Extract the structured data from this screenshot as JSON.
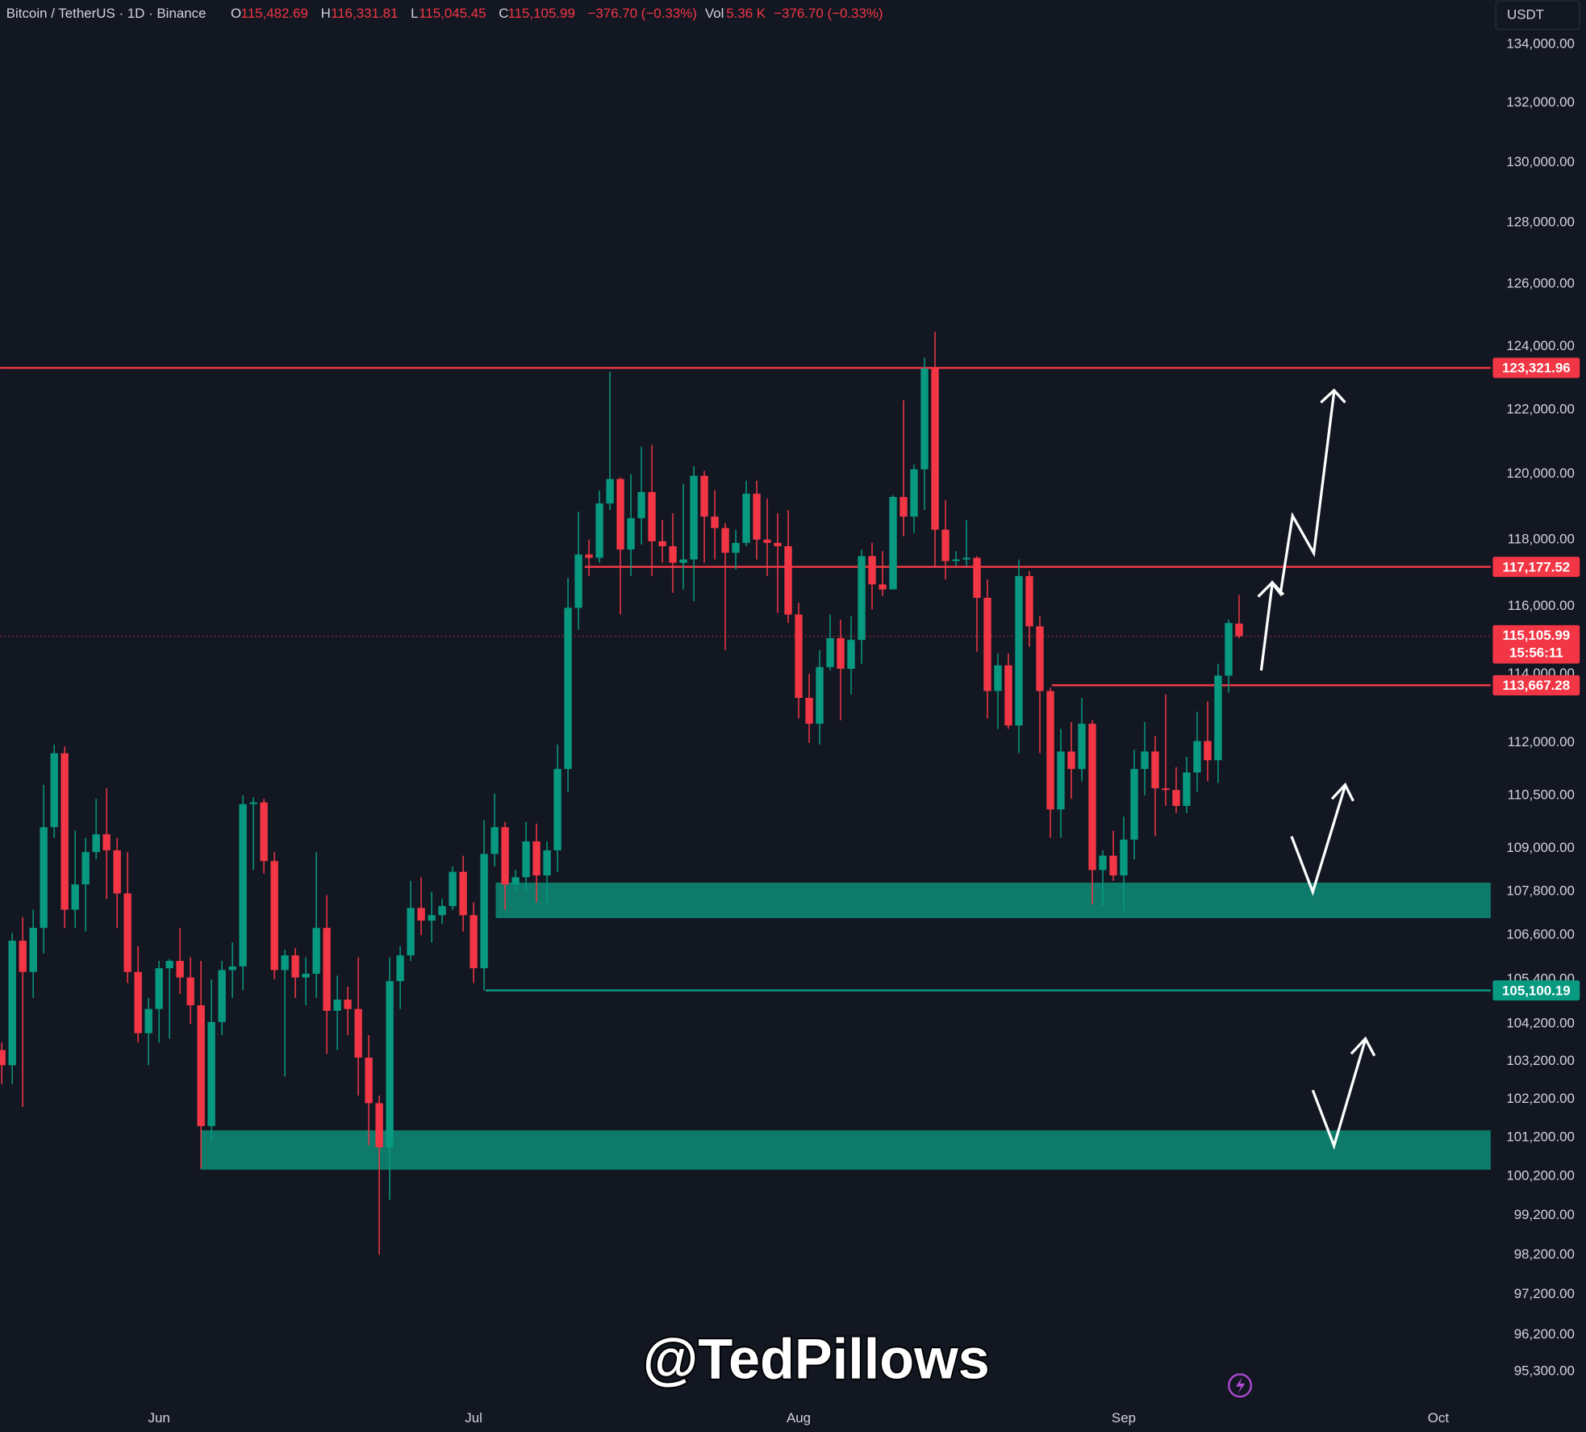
{
  "chart_data": {
    "type": "candlestick",
    "header": {
      "symbol": "Bitcoin / TetherUS · 1D · Binance",
      "fields": [
        {
          "key": "O",
          "value": "115,482.69"
        },
        {
          "key": "H",
          "value": "116,331.81"
        },
        {
          "key": "L",
          "value": "115,045.45"
        },
        {
          "key": "C",
          "value": "115,105.99"
        }
      ],
      "change": "−376.70 (−0.33%)",
      "volume": {
        "key": "Vol",
        "value": "5.36 K"
      },
      "volume_change": "−376.70 (−0.33%)",
      "currency": "USDT"
    },
    "watermark": "@TedPillows",
    "up_color": "#089981",
    "down_color": "#f23645",
    "log_scale": true,
    "grid": false,
    "open": [
      103500,
      103100,
      106450,
      105600,
      106800,
      109600,
      111700,
      107300,
      108000,
      108900,
      109400,
      108950,
      107750,
      105600,
      103950,
      104600,
      105700,
      105900,
      105450,
      104700,
      101500,
      104250,
      105650,
      105750,
      110250,
      110300,
      108650,
      105650,
      106050,
      105450,
      105550,
      106800,
      104550,
      104850,
      104600,
      103300,
      102100,
      100950,
      105350,
      106050,
      107350,
      107000,
      107150,
      107400,
      108350,
      107150,
      105700,
      108850,
      109600,
      108000,
      108200,
      109200,
      108250,
      108950,
      111250,
      115950,
      117550,
      117450,
      119100,
      119850,
      117700,
      118650,
      119450,
      117950,
      117800,
      117300,
      117400,
      119950,
      118700,
      118350,
      117600,
      117900,
      119400,
      118000,
      117900,
      117800,
      115750,
      113300,
      112550,
      114200,
      115050,
      114150,
      115000,
      117500,
      116650,
      116500,
      119300,
      118700,
      120150,
      123300,
      118300,
      117350,
      117400,
      117450,
      116250,
      113500,
      114250,
      112500,
      116900,
      115400,
      113500,
      110100,
      111750,
      111250,
      112550,
      108400,
      108800,
      108250,
      109250,
      111250,
      111750,
      110700,
      110650,
      110200,
      111150,
      112050,
      111500,
      113950,
      115482.69
    ],
    "high": [
      103700,
      106660,
      107100,
      107300,
      110800,
      111950,
      111900,
      109500,
      109300,
      110400,
      110700,
      109300,
      108900,
      106300,
      104900,
      105900,
      105950,
      106800,
      106000,
      105900,
      105400,
      105900,
      106400,
      110500,
      110450,
      110400,
      108900,
      106200,
      106250,
      106000,
      108900,
      107700,
      105500,
      105200,
      106000,
      103900,
      102300,
      106000,
      106300,
      108100,
      108200,
      107800,
      107600,
      108500,
      108800,
      107500,
      109800,
      110550,
      109750,
      108400,
      109750,
      109700,
      109200,
      111950,
      116850,
      118850,
      118000,
      119500,
      123200,
      119900,
      120000,
      120850,
      120900,
      118600,
      118800,
      119700,
      120250,
      120100,
      119500,
      118500,
      118300,
      119800,
      119800,
      119250,
      118800,
      118900,
      116100,
      114000,
      114700,
      115750,
      115600,
      115700,
      117700,
      117900,
      117650,
      119350,
      122300,
      120300,
      123650,
      124474,
      119200,
      117650,
      118600,
      117500,
      116800,
      114600,
      114600,
      117400,
      117050,
      115700,
      113600,
      112400,
      112600,
      113300,
      112650,
      108950,
      109500,
      109900,
      111800,
      112600,
      112200,
      113400,
      111300,
      111600,
      112900,
      113200,
      114300,
      115600,
      116331.81
    ],
    "low": [
      102600,
      102600,
      102000,
      104900,
      106100,
      109300,
      106800,
      106800,
      106700,
      108700,
      107600,
      106800,
      105300,
      103700,
      103100,
      103700,
      103800,
      105000,
      104200,
      100400,
      101100,
      103900,
      104900,
      105100,
      108400,
      108300,
      105400,
      102800,
      104900,
      104700,
      104900,
      103400,
      103500,
      103900,
      102300,
      101000,
      98200,
      99600,
      104600,
      105900,
      106600,
      106400,
      106900,
      107300,
      106700,
      105300,
      105100,
      108500,
      107300,
      107800,
      107800,
      107500,
      107500,
      108350,
      110600,
      115300,
      116900,
      117300,
      118900,
      115750,
      116900,
      117850,
      116900,
      117300,
      116400,
      116500,
      116150,
      117300,
      117400,
      114700,
      117100,
      117800,
      117400,
      116900,
      115800,
      115500,
      112700,
      112000,
      111950,
      114100,
      112650,
      113400,
      114300,
      115900,
      116300,
      116500,
      118100,
      118200,
      118900,
      117200,
      116800,
      117200,
      117200,
      114650,
      112700,
      112400,
      112400,
      111700,
      114800,
      111700,
      109300,
      109300,
      110400,
      110900,
      107450,
      107400,
      108100,
      107270,
      108700,
      110500,
      109350,
      110200,
      110000,
      110000,
      110600,
      110900,
      110850,
      113450,
      115045.45
    ],
    "close": [
      103100,
      106450,
      105600,
      106800,
      109600,
      111700,
      107300,
      108000,
      108900,
      109400,
      108950,
      107750,
      105600,
      103950,
      104600,
      105700,
      105900,
      105450,
      104700,
      101500,
      104250,
      105650,
      105750,
      110250,
      110300,
      108650,
      105650,
      106050,
      105450,
      105550,
      106800,
      104550,
      104850,
      104600,
      103300,
      102100,
      100950,
      105350,
      106050,
      107350,
      107000,
      107150,
      107400,
      108350,
      107150,
      105700,
      108850,
      109600,
      108000,
      108200,
      109200,
      108250,
      108950,
      111250,
      115950,
      117550,
      117450,
      119100,
      119850,
      117700,
      118650,
      119450,
      117950,
      117800,
      117300,
      117400,
      119950,
      118700,
      118350,
      117600,
      117900,
      119400,
      118000,
      117900,
      117800,
      115750,
      113300,
      112550,
      114200,
      115050,
      114150,
      115000,
      117500,
      116650,
      116500,
      119300,
      118700,
      120150,
      123300,
      118300,
      117350,
      117400,
      117450,
      116250,
      113500,
      114250,
      112500,
      116900,
      115400,
      113500,
      110100,
      111750,
      111250,
      112550,
      108400,
      108800,
      108250,
      109250,
      111250,
      111750,
      110700,
      110650,
      110200,
      111150,
      112050,
      111500,
      113950,
      115500,
      115105.99
    ],
    "xlim": [
      -0.15,
      142
    ],
    "xticks": [
      {
        "value": 15,
        "label": "Jun"
      },
      {
        "value": 45,
        "label": "Jul"
      },
      {
        "value": 76,
        "label": "Aug"
      },
      {
        "value": 107,
        "label": "Sep"
      },
      {
        "value": 137,
        "label": "Oct"
      }
    ],
    "ylim": [
      94590,
      135540
    ],
    "yticks": [
      {
        "value": 134000,
        "label": "134,000.00"
      },
      {
        "value": 132000,
        "label": "132,000.00"
      },
      {
        "value": 130000,
        "label": "130,000.00"
      },
      {
        "value": 128000,
        "label": "128,000.00"
      },
      {
        "value": 126000,
        "label": "126,000.00"
      },
      {
        "value": 124000,
        "label": "124,000.00"
      },
      {
        "value": 122000,
        "label": "122,000.00"
      },
      {
        "value": 120000,
        "label": "120,000.00"
      },
      {
        "value": 118000,
        "label": "118,000.00"
      },
      {
        "value": 116000,
        "label": "116,000.00"
      },
      {
        "value": 114000,
        "label": "114,000.00"
      },
      {
        "value": 112000,
        "label": "112,000.00"
      },
      {
        "value": 110500,
        "label": "110,500.00"
      },
      {
        "value": 109000,
        "label": "109,000.00"
      },
      {
        "value": 107800,
        "label": "107,800.00"
      },
      {
        "value": 106600,
        "label": "106,600.00"
      },
      {
        "value": 105400,
        "label": "105,400.00"
      },
      {
        "value": 104200,
        "label": "104,200.00"
      },
      {
        "value": 103200,
        "label": "103,200.00"
      },
      {
        "value": 102200,
        "label": "102,200.00"
      },
      {
        "value": 101200,
        "label": "101,200.00"
      },
      {
        "value": 100200,
        "label": "100,200.00"
      },
      {
        "value": 99200,
        "label": "99,200.00"
      },
      {
        "value": 98200,
        "label": "98,200.00"
      },
      {
        "value": 97200,
        "label": "97,200.00"
      },
      {
        "value": 96200,
        "label": "96,200.00"
      },
      {
        "value": 95300,
        "label": "95,300.00"
      }
    ],
    "zones": [
      {
        "low": 107070,
        "high": 108050,
        "color": "#0d7a6a"
      },
      {
        "low": 100370,
        "high": 101390,
        "color": "#0d7a6a"
      }
    ],
    "levels": [
      {
        "value": 123321.96,
        "label": "123,321.96",
        "color": "#f23645"
      },
      {
        "value": 117177.52,
        "label": "117,177.52",
        "color": "#f23645"
      },
      {
        "value": 113667.28,
        "label": "113,667.28",
        "color": "#f23645"
      },
      {
        "value": 105100.19,
        "label": "105,100.19",
        "color": "#089981"
      }
    ],
    "last_price": {
      "value": 115105.99,
      "label": "115,105.99",
      "countdown": "15:56:11",
      "color": "#f23645"
    }
  }
}
